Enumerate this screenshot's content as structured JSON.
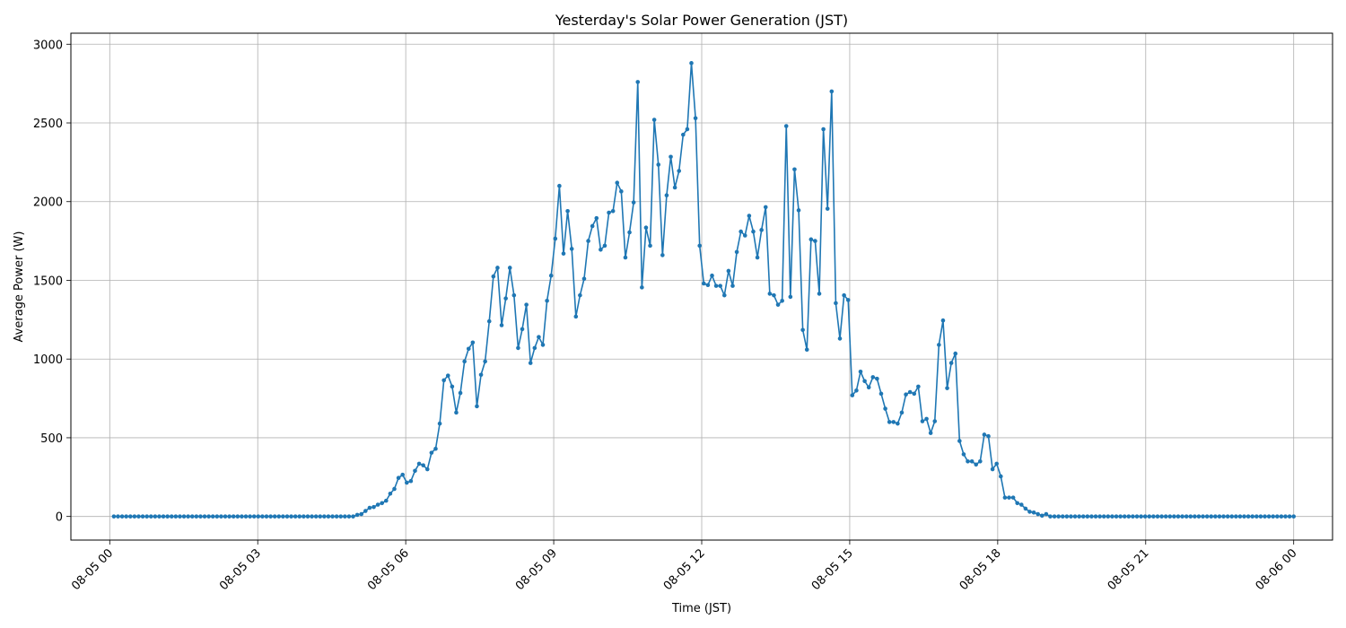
{
  "chart_data": {
    "type": "line",
    "title": "Yesterday's Solar Power Generation (JST)",
    "xlabel": "Time (JST)",
    "ylabel": "Average Power (W)",
    "x_range": [
      "08-05 00:00",
      "08-06 00:00"
    ],
    "ylim": [
      -150,
      3070
    ],
    "grid": true,
    "line_color": "#1f77b4",
    "x_ticks": [
      "08-05 00",
      "08-05 03",
      "08-05 06",
      "08-05 09",
      "08-05 12",
      "08-05 15",
      "08-05 18",
      "08-05 21",
      "08-06 00"
    ],
    "y_ticks": [
      "0",
      "500",
      "1000",
      "1500",
      "2000",
      "2500",
      "3000"
    ],
    "series": [
      {
        "x_start": "08-05 00:05",
        "x_end": "08-06 00:00",
        "sample_interval": "5 min",
        "values": [
          0,
          0,
          0,
          0,
          0,
          0,
          0,
          0,
          0,
          0,
          0,
          0,
          0,
          0,
          0,
          0,
          0,
          0,
          0,
          0,
          0,
          0,
          0,
          0,
          0,
          0,
          0,
          0,
          0,
          0,
          0,
          0,
          0,
          0,
          0,
          0,
          0,
          0,
          0,
          0,
          0,
          0,
          0,
          0,
          0,
          0,
          0,
          0,
          0,
          0,
          0,
          0,
          0,
          0,
          0,
          0,
          0,
          0,
          0,
          10,
          15,
          35,
          55,
          60,
          75,
          85,
          100,
          145,
          175,
          245,
          265,
          215,
          225,
          290,
          335,
          325,
          300,
          405,
          430,
          590,
          865,
          895,
          825,
          660,
          785,
          985,
          1065,
          1105,
          700,
          900,
          985,
          1240,
          1525,
          1580,
          1215,
          1385,
          1580,
          1405,
          1070,
          1190,
          1345,
          975,
          1070,
          1140,
          1090,
          1370,
          1530,
          1765,
          2100,
          1670,
          1940,
          1700,
          1270,
          1405,
          1510,
          1750,
          1845,
          1895,
          1695,
          1720,
          1930,
          1940,
          2120,
          2065,
          1645,
          1805,
          1995,
          2760,
          1455,
          1835,
          1720,
          2520,
          2235,
          1660,
          2040,
          2285,
          2090,
          2195,
          2425,
          2460,
          2880,
          2530,
          1720,
          1480,
          1470,
          1530,
          1465,
          1465,
          1405,
          1560,
          1465,
          1680,
          1810,
          1785,
          1910,
          1810,
          1645,
          1820,
          1965,
          1415,
          1405,
          1345,
          1370,
          2480,
          1395,
          2205,
          1945,
          1185,
          1060,
          1760,
          1750,
          1415,
          2460,
          1955,
          2700,
          1355,
          1130,
          1405,
          1375,
          770,
          800,
          920,
          860,
          820,
          885,
          875,
          780,
          685,
          600,
          600,
          590,
          660,
          775,
          790,
          780,
          825,
          605,
          620,
          530,
          605,
          1090,
          1245,
          815,
          975,
          1035,
          480,
          395,
          350,
          350,
          330,
          350,
          520,
          510,
          300,
          335,
          255,
          120,
          120,
          120,
          85,
          75,
          50,
          30,
          25,
          15,
          5,
          15,
          0,
          0,
          0,
          0,
          0,
          0,
          0,
          0,
          0,
          0,
          0,
          0,
          0,
          0,
          0,
          0,
          0,
          0,
          0,
          0,
          0,
          0,
          0,
          0,
          0,
          0,
          0,
          0,
          0,
          0,
          0,
          0,
          0,
          0,
          0,
          0,
          0,
          0,
          0,
          0,
          0,
          0,
          0,
          0,
          0,
          0,
          0,
          0,
          0,
          0,
          0,
          0,
          0,
          0,
          0,
          0,
          0,
          0,
          0,
          0
        ]
      }
    ]
  }
}
